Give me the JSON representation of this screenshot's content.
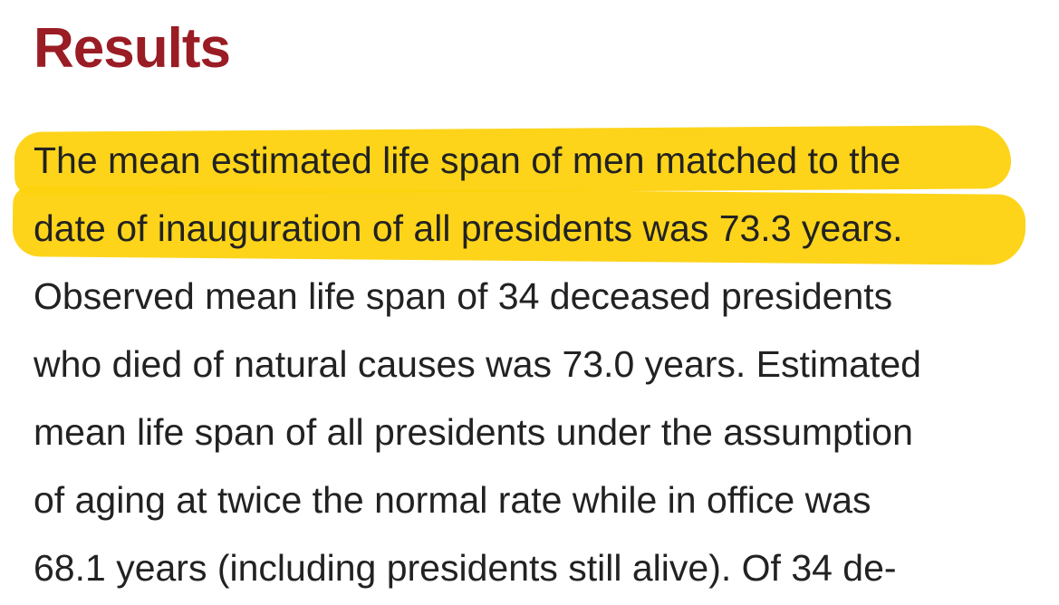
{
  "heading": "Results",
  "paragraph": {
    "lines": [
      "The mean estimated life span of men matched to the",
      "date of inauguration of all presidents was 73.3 years.",
      "Observed mean life span of 34 deceased presidents",
      "who died of natural causes was 73.0 years. Estimated",
      "mean life span of all presidents under the assumption",
      "of aging at twice the normal rate while in office was",
      "68.1 years (including presidents still alive). Of 34 de-"
    ]
  }
}
